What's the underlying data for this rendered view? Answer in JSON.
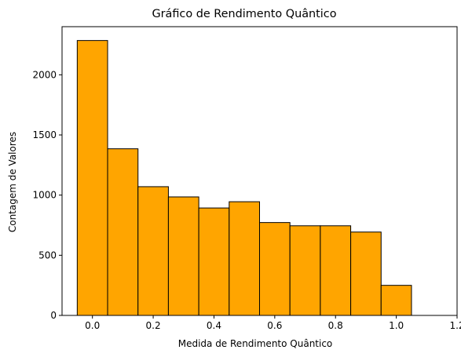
{
  "chart_data": {
    "type": "bar",
    "title": "Gráfico de Rendimento Quântico",
    "xlabel": "Medida de Rendimento Quântico",
    "ylabel": "Contagem de Valores",
    "xlim": [
      -0.1,
      1.2
    ],
    "ylim": [
      0,
      2400
    ],
    "xticks": [
      0.0,
      0.2,
      0.4,
      0.6,
      0.8,
      1.0,
      1.2
    ],
    "xtick_labels": [
      "0.0",
      "0.2",
      "0.4",
      "0.6",
      "0.8",
      "1.0",
      "1.2"
    ],
    "yticks": [
      0,
      500,
      1000,
      1500,
      2000
    ],
    "ytick_labels": [
      "0",
      "500",
      "1000",
      "1500",
      "2000"
    ],
    "bar_color": "#ffa500",
    "edge_color": "#000000",
    "bins": [
      {
        "x0": -0.05,
        "x1": 0.05,
        "value": 2285
      },
      {
        "x0": 0.05,
        "x1": 0.15,
        "value": 1385
      },
      {
        "x0": 0.15,
        "x1": 0.25,
        "value": 1070
      },
      {
        "x0": 0.25,
        "x1": 0.35,
        "value": 985
      },
      {
        "x0": 0.35,
        "x1": 0.45,
        "value": 893
      },
      {
        "x0": 0.45,
        "x1": 0.55,
        "value": 945
      },
      {
        "x0": 0.55,
        "x1": 0.65,
        "value": 772
      },
      {
        "x0": 0.65,
        "x1": 0.75,
        "value": 745
      },
      {
        "x0": 0.75,
        "x1": 0.85,
        "value": 745
      },
      {
        "x0": 0.85,
        "x1": 0.95,
        "value": 693
      },
      {
        "x0": 0.95,
        "x1": 1.05,
        "value": 250
      },
      {
        "x0": 1.05,
        "x1": 1.15,
        "value": 0
      }
    ],
    "grid": false,
    "legend": "none"
  }
}
